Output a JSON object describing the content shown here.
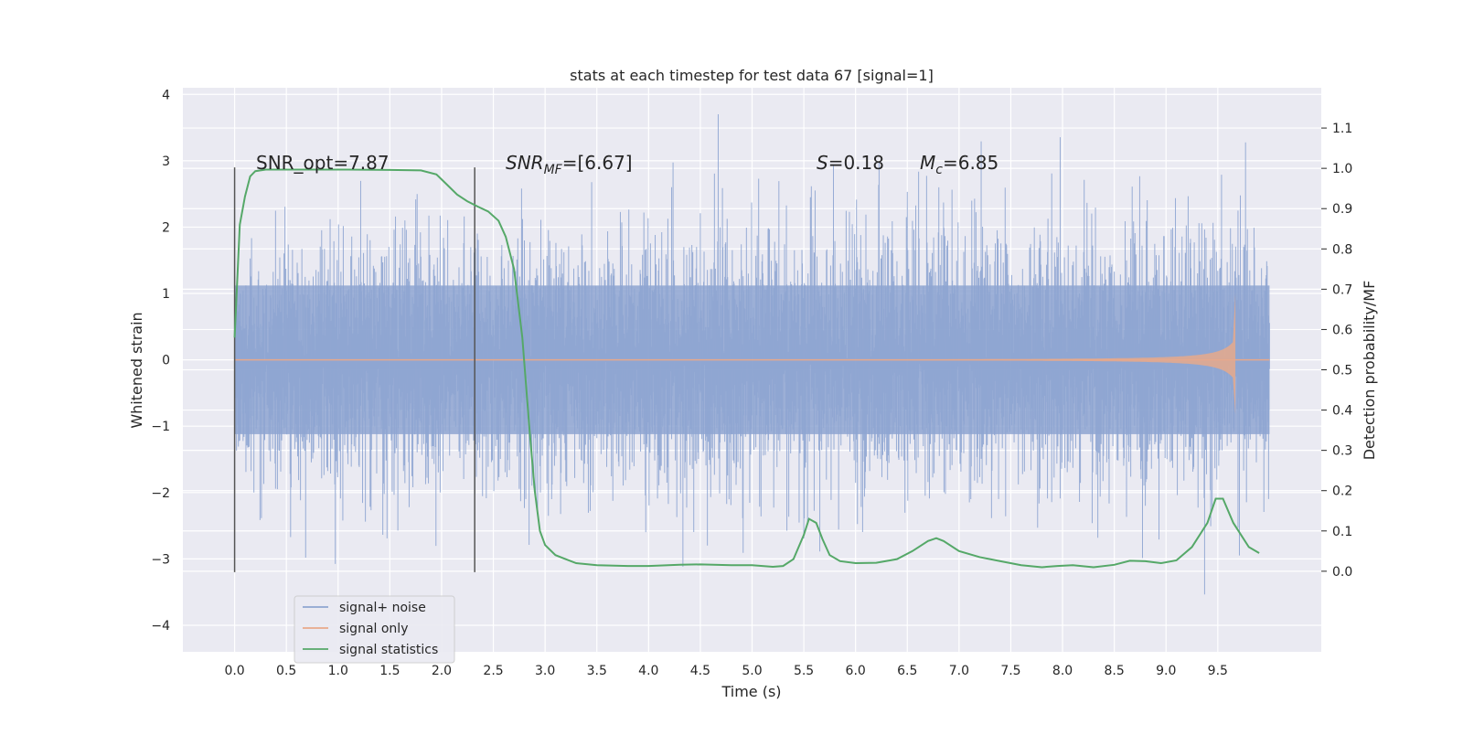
{
  "chart_data": {
    "type": "line",
    "title": "stats at each timestep for test data 67 [signal=1]",
    "xlabel": "Time (s)",
    "ylabel_left": "Whitened strain",
    "ylabel_right": "Detection probability/MF",
    "xlim": [
      -0.5,
      10.5
    ],
    "ylim_left": [
      -4.4,
      4.1
    ],
    "ylim_right": [
      -0.2,
      1.2
    ],
    "x_ticks": [
      "0.0",
      "0.5",
      "1.0",
      "1.5",
      "2.0",
      "2.5",
      "3.0",
      "3.5",
      "4.0",
      "4.5",
      "5.0",
      "5.5",
      "6.0",
      "6.5",
      "7.0",
      "7.5",
      "8.0",
      "8.5",
      "9.0",
      "9.5"
    ],
    "y_ticks_left": [
      "−4",
      "−3",
      "−2",
      "−1",
      "0",
      "1",
      "2",
      "3",
      "4"
    ],
    "y_ticks_right": [
      "0.0",
      "0.1",
      "0.2",
      "0.3",
      "0.4",
      "0.5",
      "0.6",
      "0.7",
      "0.8",
      "0.9",
      "1.0",
      "1.1"
    ],
    "grid": true,
    "legend_position": "lower-left",
    "annotations": {
      "snr_opt": "SNR_opt=7.87",
      "snr_mf_name": "SNR",
      "snr_mf_sub": "MF",
      "snr_mf_value": "=[6.67]",
      "s_name": "S",
      "s_value": "=0.18",
      "mc_name": "M",
      "mc_sub": "c",
      "mc_value": "=6.85"
    },
    "vertical_markers": [
      {
        "x": 0.0,
        "y_from": -3.2,
        "y_to": 2.9
      },
      {
        "x": 2.32,
        "y_from": -3.2,
        "y_to": 2.9
      }
    ],
    "series": [
      {
        "name": "signal+ noise",
        "axis": "left",
        "color": "#8ea5d1",
        "envelope": {
          "x_start": 0.0,
          "x_end": 10.0,
          "typical_abs": 1.6,
          "max_abs": 3.7
        }
      },
      {
        "name": "signal only",
        "axis": "left",
        "color": "#dd8452",
        "chirp": {
          "x_start": 0.0,
          "x_peak": 9.67,
          "x_end": 10.0,
          "peak_amplitude": 1.0
        }
      },
      {
        "name": "signal statistics",
        "axis": "right",
        "color": "#55a868",
        "x": [
          0.0,
          0.05,
          0.1,
          0.15,
          0.2,
          0.3,
          0.5,
          1.0,
          1.5,
          1.8,
          1.95,
          2.05,
          2.15,
          2.25,
          2.35,
          2.45,
          2.55,
          2.62,
          2.7,
          2.78,
          2.85,
          2.9,
          2.95,
          3.0,
          3.1,
          3.2,
          3.3,
          3.5,
          3.8,
          4.0,
          4.3,
          4.5,
          4.8,
          5.0,
          5.2,
          5.3,
          5.4,
          5.5,
          5.55,
          5.62,
          5.68,
          5.75,
          5.85,
          6.0,
          6.2,
          6.4,
          6.55,
          6.7,
          6.78,
          6.85,
          7.0,
          7.2,
          7.4,
          7.6,
          7.8,
          7.95,
          8.1,
          8.3,
          8.5,
          8.65,
          8.8,
          8.95,
          9.1,
          9.25,
          9.4,
          9.48,
          9.55,
          9.65,
          9.8,
          9.9
        ],
        "values": [
          0.58,
          0.86,
          0.93,
          0.98,
          0.993,
          0.997,
          0.997,
          0.997,
          0.996,
          0.995,
          0.985,
          0.96,
          0.935,
          0.918,
          0.905,
          0.893,
          0.87,
          0.83,
          0.75,
          0.58,
          0.35,
          0.2,
          0.1,
          0.065,
          0.04,
          0.03,
          0.02,
          0.015,
          0.013,
          0.013,
          0.016,
          0.017,
          0.015,
          0.015,
          0.011,
          0.013,
          0.03,
          0.09,
          0.13,
          0.12,
          0.08,
          0.04,
          0.025,
          0.02,
          0.021,
          0.03,
          0.05,
          0.075,
          0.082,
          0.075,
          0.05,
          0.035,
          0.025,
          0.015,
          0.01,
          0.013,
          0.015,
          0.01,
          0.016,
          0.026,
          0.025,
          0.02,
          0.027,
          0.06,
          0.12,
          0.18,
          0.18,
          0.12,
          0.06,
          0.045
        ]
      }
    ]
  }
}
